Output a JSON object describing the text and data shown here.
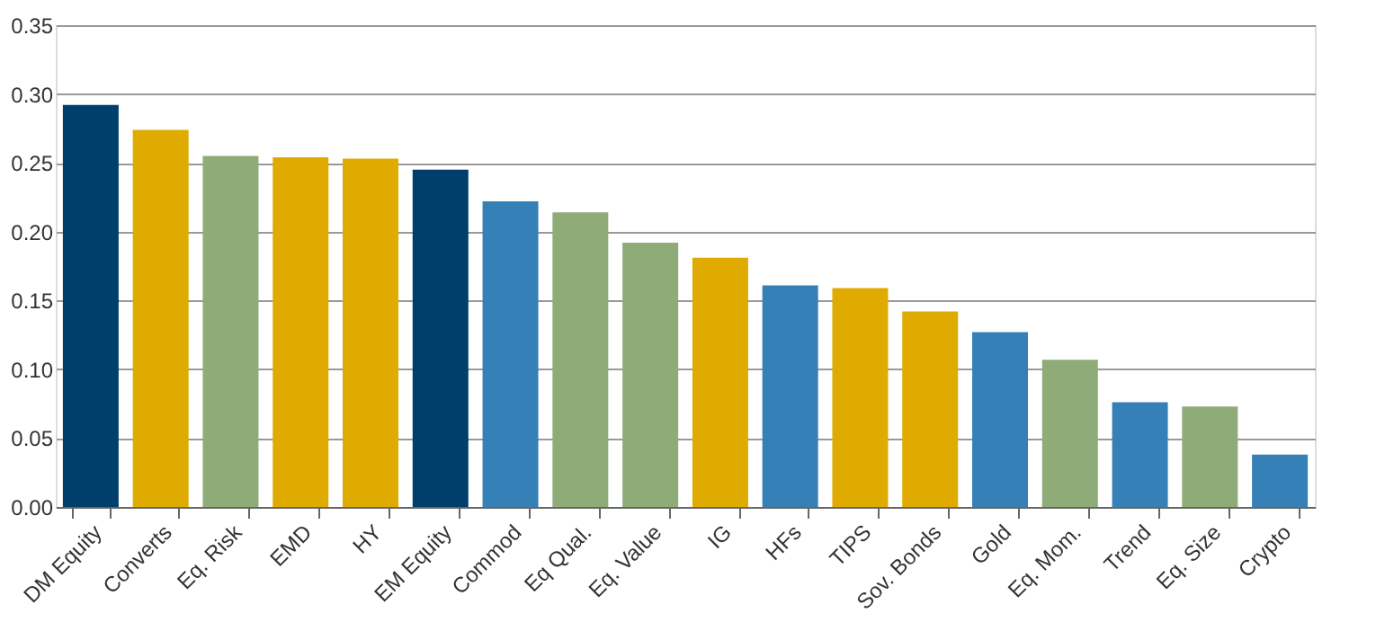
{
  "chart_data": {
    "type": "bar",
    "categories": [
      "DM Equity",
      "Converts",
      "Eq. Risk",
      "EMD",
      "HY",
      "EM Equity",
      "Commod",
      "Eq Qual.",
      "Eq. Value",
      "IG",
      "HFs",
      "TIPS",
      "Sov. Bonds",
      "Gold",
      "Eq. Mom.",
      "Trend",
      "Eq. Size",
      "Crypto"
    ],
    "values": [
      0.292,
      0.274,
      0.255,
      0.254,
      0.253,
      0.245,
      0.222,
      0.214,
      0.192,
      0.181,
      0.161,
      0.159,
      0.142,
      0.127,
      0.107,
      0.076,
      0.073,
      0.038
    ],
    "colors": [
      "#003f6b",
      "#dfab00",
      "#8fac78",
      "#dfab00",
      "#dfab00",
      "#003f6b",
      "#3680b8",
      "#8fac78",
      "#8fac78",
      "#dfab00",
      "#3680b8",
      "#dfab00",
      "#dfab00",
      "#3680b8",
      "#8fac78",
      "#3680b8",
      "#8fac78",
      "#3680b8"
    ],
    "ylim": [
      0,
      0.35
    ],
    "yticks": [
      {
        "value": 0,
        "label": "0.00"
      },
      0.05,
      {
        "value": 0.1,
        "label": "0.10"
      },
      0.15,
      {
        "value": 0.2,
        "label": "0.20"
      },
      0.25,
      {
        "value": 0.3,
        "label": "0.30"
      },
      0.35
    ],
    "grid": "y"
  }
}
